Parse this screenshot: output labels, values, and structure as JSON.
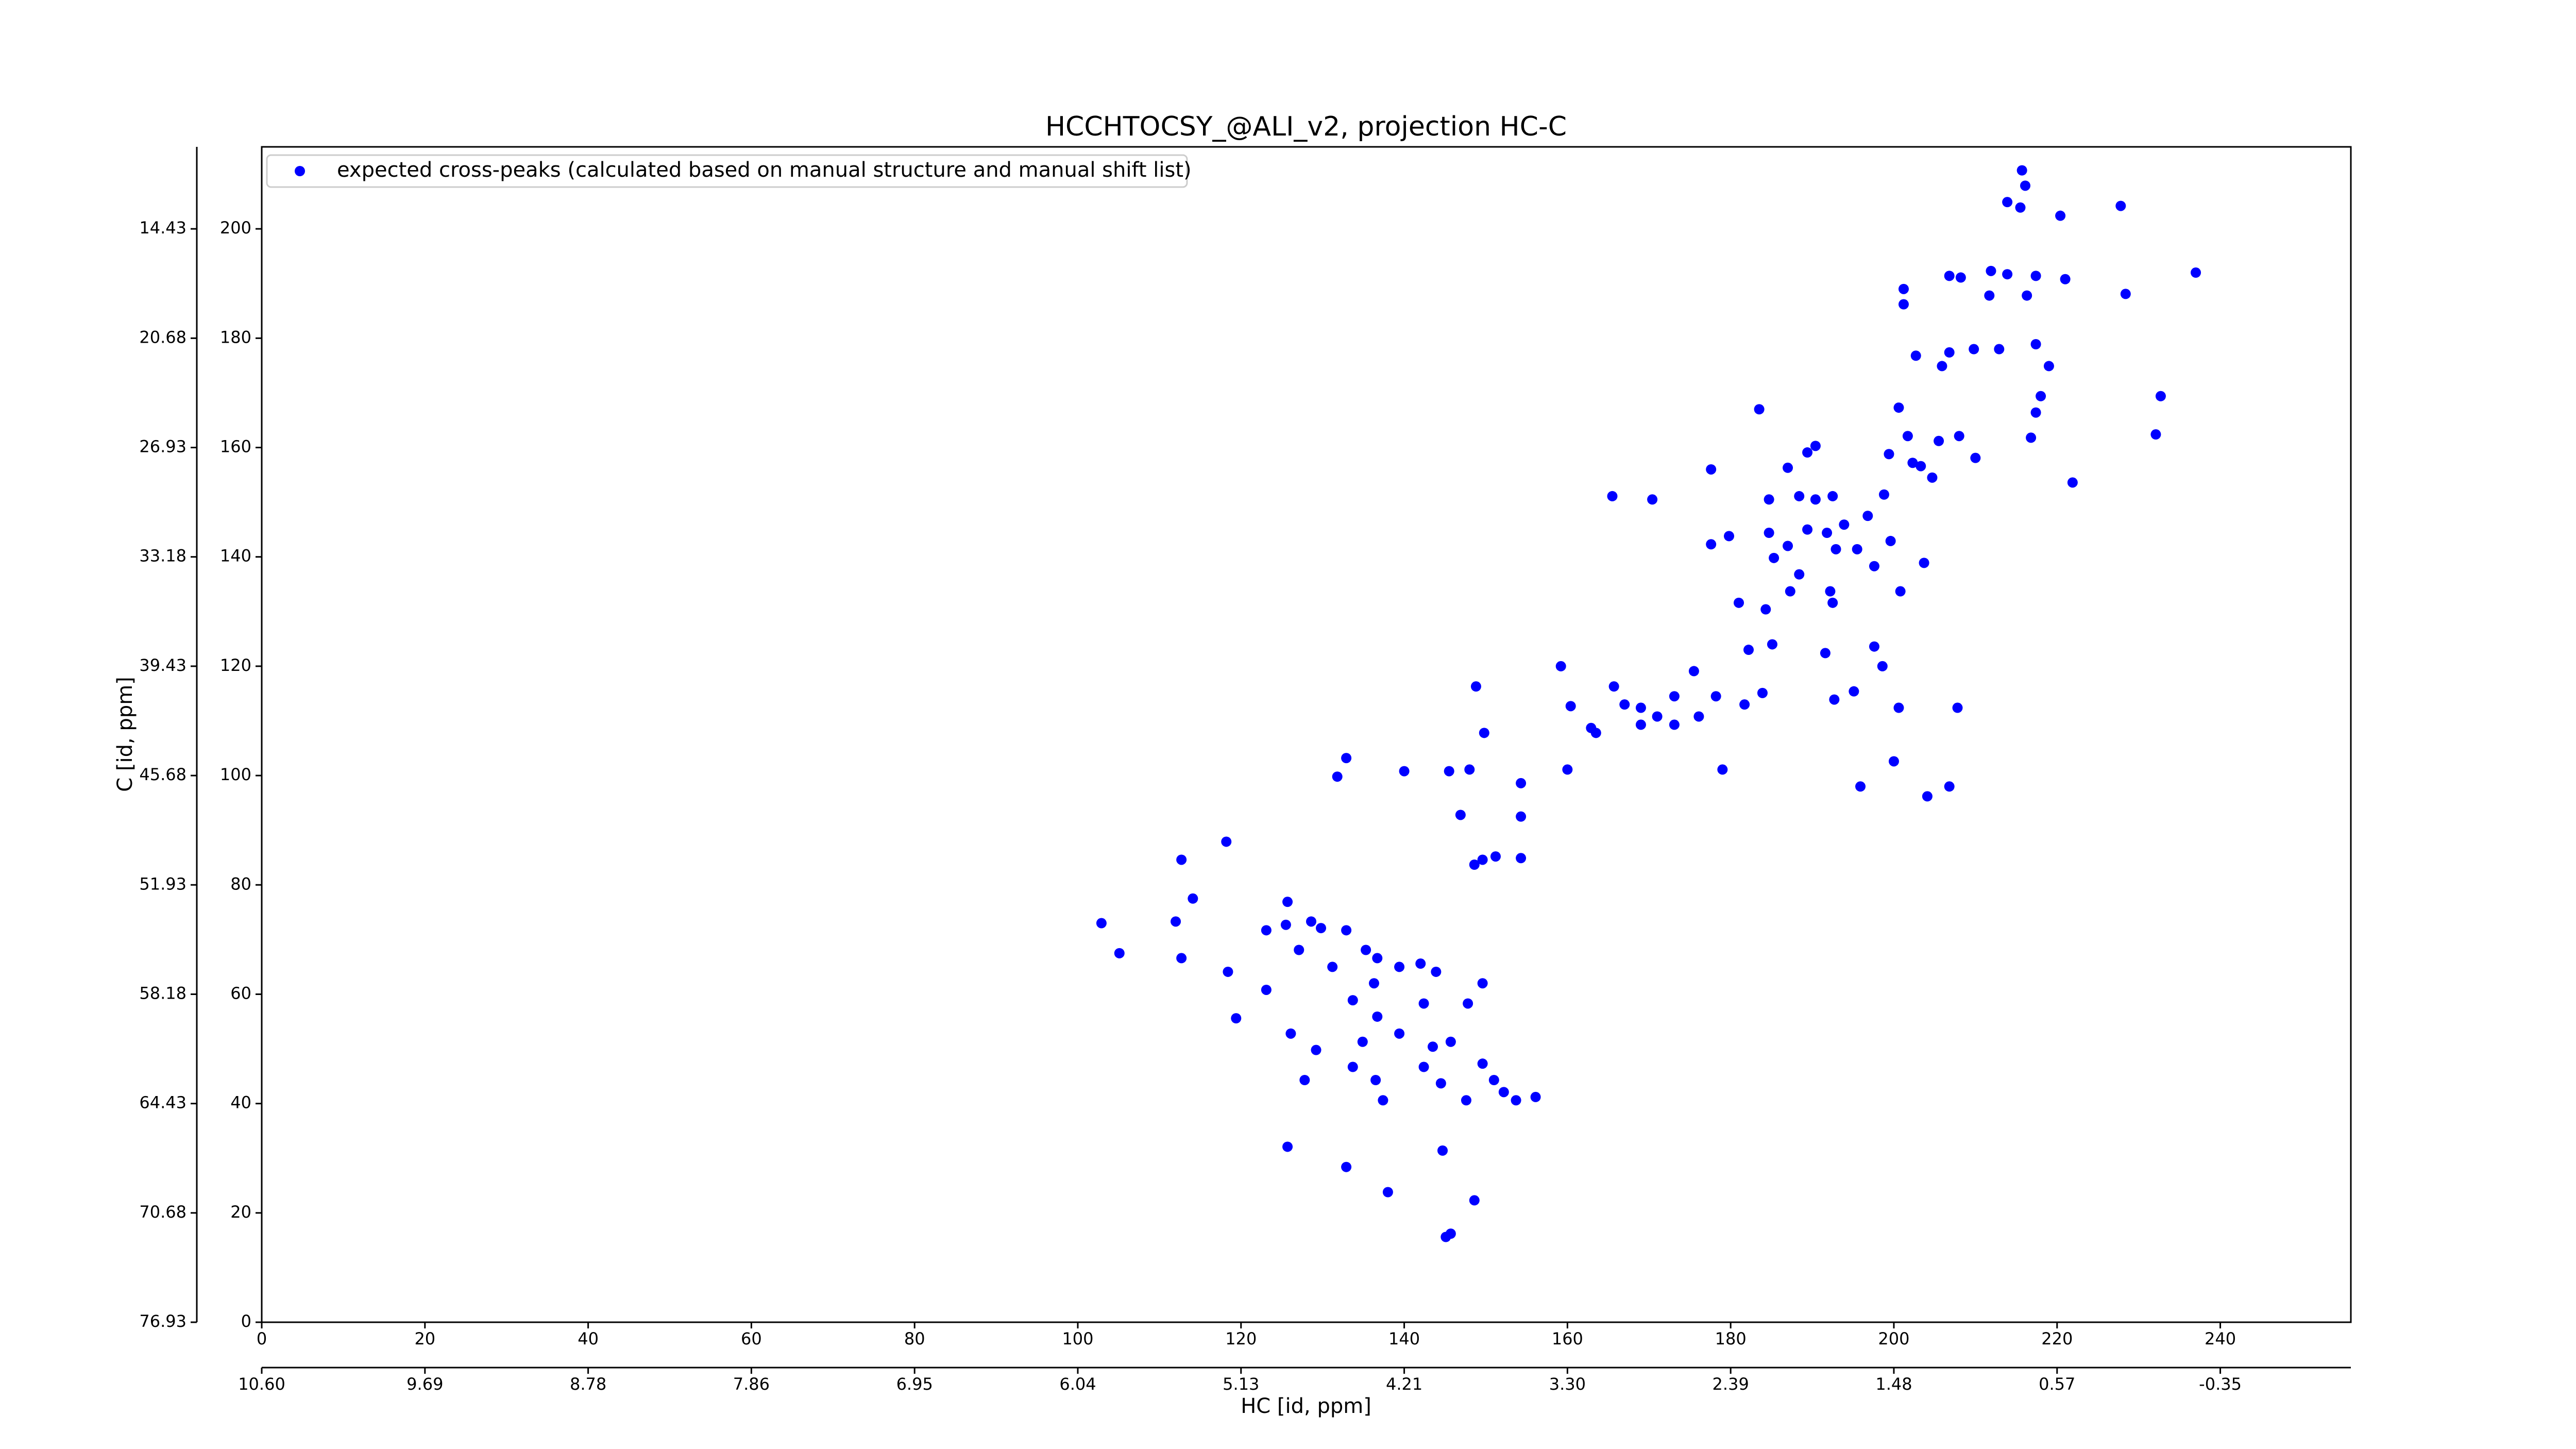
{
  "chart_data": {
    "type": "scatter",
    "title": "HCCHTOCSY_@ALI_v2, projection HC-C",
    "xlabel": "HC [id, ppm]",
    "ylabel": "C [id, ppm]",
    "xlim": [
      0,
      256
    ],
    "ylim": [
      0,
      215
    ],
    "xticks": [
      0,
      20,
      40,
      60,
      80,
      100,
      120,
      140,
      160,
      180,
      200,
      220,
      240
    ],
    "yticks": [
      0,
      20,
      40,
      60,
      80,
      100,
      120,
      140,
      160,
      180,
      200
    ],
    "x2ticks": [
      {
        "value": 0,
        "label": "10.60"
      },
      {
        "value": 20,
        "label": "9.69"
      },
      {
        "value": 40,
        "label": "8.78"
      },
      {
        "value": 60,
        "label": "7.86"
      },
      {
        "value": 80,
        "label": "6.95"
      },
      {
        "value": 100,
        "label": "6.04"
      },
      {
        "value": 120,
        "label": "5.13"
      },
      {
        "value": 140,
        "label": "4.21"
      },
      {
        "value": 160,
        "label": "3.30"
      },
      {
        "value": 180,
        "label": "2.39"
      },
      {
        "value": 200,
        "label": "1.48"
      },
      {
        "value": 220,
        "label": "0.57"
      },
      {
        "value": 240,
        "label": "-0.35"
      }
    ],
    "y2ticks": [
      {
        "value": 0,
        "label": "76.93"
      },
      {
        "value": 20,
        "label": "70.68"
      },
      {
        "value": 40,
        "label": "64.43"
      },
      {
        "value": 60,
        "label": "58.18"
      },
      {
        "value": 80,
        "label": "51.93"
      },
      {
        "value": 100,
        "label": "45.68"
      },
      {
        "value": 120,
        "label": "39.43"
      },
      {
        "value": 140,
        "label": "33.18"
      },
      {
        "value": 160,
        "label": "26.93"
      },
      {
        "value": 180,
        "label": "20.68"
      },
      {
        "value": 200,
        "label": "14.43"
      }
    ],
    "legend": "upper left",
    "series": [
      {
        "name": "expected cross-peaks (calculated based on manual structure and manual shift list)",
        "color": "#0000ff",
        "x": [
          215.7,
          216.1,
          213.9,
          215.5,
          220.4,
          227.8,
          201.2,
          201.2,
          206.8,
          208.2,
          211.9,
          213.9,
          217.4,
          221.0,
          211.7,
          216.3,
          228.4,
          237.0,
          202.7,
          205.9,
          206.8,
          209.8,
          212.9,
          217.4,
          219.0,
          218.0,
          217.4,
          216.8,
          221.9,
          232.7,
          232.1,
          183.5,
          200.6,
          201.7,
          205.5,
          202.3,
          204.7,
          198.8,
          196.8,
          199.6,
          189.4,
          190.4,
          187.0,
          188.4,
          184.7,
          190.4,
          192.5,
          193.9,
          184.7,
          185.3,
          187.0,
          189.4,
          191.8,
          192.9,
          195.5,
          197.6,
          200.8,
          188.4,
          187.3,
          192.2,
          192.5,
          203.3,
          208.0,
          210.0,
          203.7,
          199.4,
          165.5,
          170.4,
          177.6,
          179.8,
          177.6,
          181.0,
          184.3,
          182.2,
          185.1,
          191.6,
          197.6,
          192.7,
          195.1,
          198.6,
          200.6,
          207.8,
          195.9,
          200.0,
          204.1,
          206.8,
          165.7,
          167.0,
          169.0,
          171.0,
          173.1,
          175.5,
          178.2,
          181.7,
          183.9,
          173.1,
          176.1,
          169.0,
          163.5,
          159.2,
          160.4,
          162.9,
          179.0,
          160.0,
          148.8,
          149.8,
          148.0,
          140.0,
          145.5,
          132.9,
          131.8,
          154.3,
          146.9,
          154.3,
          149.6,
          151.2,
          154.3,
          148.6,
          112.7,
          118.2,
          114.1,
          112.0,
          102.9,
          105.1,
          112.7,
          118.4,
          123.1,
          125.7,
          125.5,
          128.6,
          129.8,
          132.9,
          135.3,
          123.1,
          127.1,
          131.2,
          136.7,
          139.4,
          142.0,
          143.9,
          136.3,
          133.7,
          136.7,
          134.9,
          139.4,
          133.7,
          136.5,
          137.4,
          142.4,
          143.5,
          145.7,
          147.8,
          149.6,
          119.4,
          126.1,
          129.2,
          127.8,
          142.4,
          144.5,
          147.6,
          149.6,
          151.0,
          152.2,
          153.7,
          156.1,
          125.7,
          132.9,
          138.0,
          144.7,
          148.6,
          145.7,
          145.1
        ],
        "values": [
          210.7,
          207.9,
          204.9,
          203.9,
          202.4,
          204.2,
          189.0,
          186.2,
          191.4,
          191.1,
          192.3,
          191.7,
          191.4,
          190.8,
          187.8,
          187.8,
          188.1,
          192.0,
          176.8,
          174.9,
          177.4,
          178.0,
          178.0,
          178.9,
          174.9,
          169.4,
          166.4,
          161.8,
          153.6,
          169.4,
          162.4,
          167.0,
          167.3,
          162.1,
          161.2,
          157.2,
          154.5,
          151.4,
          147.5,
          142.9,
          159.1,
          160.3,
          156.3,
          151.1,
          150.5,
          150.5,
          151.1,
          145.9,
          144.4,
          139.8,
          142.0,
          145.0,
          144.4,
          141.4,
          141.4,
          138.3,
          133.7,
          136.8,
          133.7,
          133.7,
          131.6,
          156.6,
          162.1,
          158.1,
          138.9,
          158.8,
          151.1,
          150.5,
          156.0,
          143.8,
          142.3,
          131.6,
          130.4,
          123.0,
          124.0,
          122.4,
          123.6,
          113.9,
          115.4,
          120.0,
          112.4,
          112.4,
          98.0,
          102.6,
          96.2,
          98.0,
          116.3,
          113.0,
          112.4,
          110.8,
          114.5,
          119.1,
          114.5,
          113.0,
          115.1,
          109.3,
          110.8,
          109.3,
          107.8,
          120.0,
          112.7,
          108.7,
          101.1,
          101.1,
          116.3,
          107.8,
          101.1,
          100.8,
          100.8,
          103.2,
          99.8,
          98.6,
          92.8,
          92.5,
          84.6,
          85.2,
          84.9,
          83.7,
          84.6,
          87.9,
          77.5,
          73.3,
          73.0,
          67.5,
          66.6,
          64.1,
          60.8,
          76.9,
          72.7,
          73.3,
          72.1,
          71.7,
          68.1,
          71.7,
          68.1,
          65.0,
          66.6,
          65.0,
          65.6,
          64.1,
          62.0,
          58.9,
          55.9,
          51.3,
          52.8,
          46.7,
          44.3,
          40.6,
          58.3,
          50.4,
          51.3,
          58.3,
          62.0,
          55.6,
          52.8,
          49.8,
          44.3,
          46.7,
          43.7,
          40.6,
          47.3,
          44.3,
          42.1,
          40.6,
          41.2,
          32.1,
          28.4,
          23.8,
          31.4,
          22.3,
          16.2,
          15.6
        ]
      }
    ]
  }
}
